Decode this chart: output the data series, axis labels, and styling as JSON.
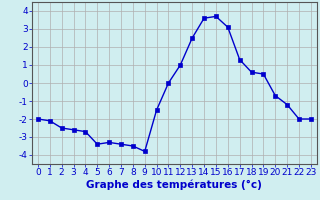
{
  "hours": [
    0,
    1,
    2,
    3,
    4,
    5,
    6,
    7,
    8,
    9,
    10,
    11,
    12,
    13,
    14,
    15,
    16,
    17,
    18,
    19,
    20,
    21,
    22,
    23
  ],
  "temperatures": [
    -2.0,
    -2.1,
    -2.5,
    -2.6,
    -2.7,
    -3.4,
    -3.3,
    -3.4,
    -3.5,
    -3.8,
    -1.5,
    0.0,
    1.0,
    2.5,
    3.6,
    3.7,
    3.1,
    1.3,
    0.6,
    0.5,
    -0.7,
    -1.2,
    -2.0,
    -2.0
  ],
  "line_color": "#0000cc",
  "marker": "s",
  "marker_size": 2.5,
  "line_width": 1.0,
  "bg_color": "#d0eef0",
  "grid_color": "#b0b0b0",
  "xlabel": "Graphe des températures (°c)",
  "xlabel_color": "#0000cc",
  "xlabel_fontsize": 7.5,
  "tick_color": "#0000cc",
  "tick_fontsize": 6.5,
  "ylim": [
    -4.5,
    4.5
  ],
  "yticks": [
    -4,
    -3,
    -2,
    -1,
    0,
    1,
    2,
    3,
    4
  ]
}
